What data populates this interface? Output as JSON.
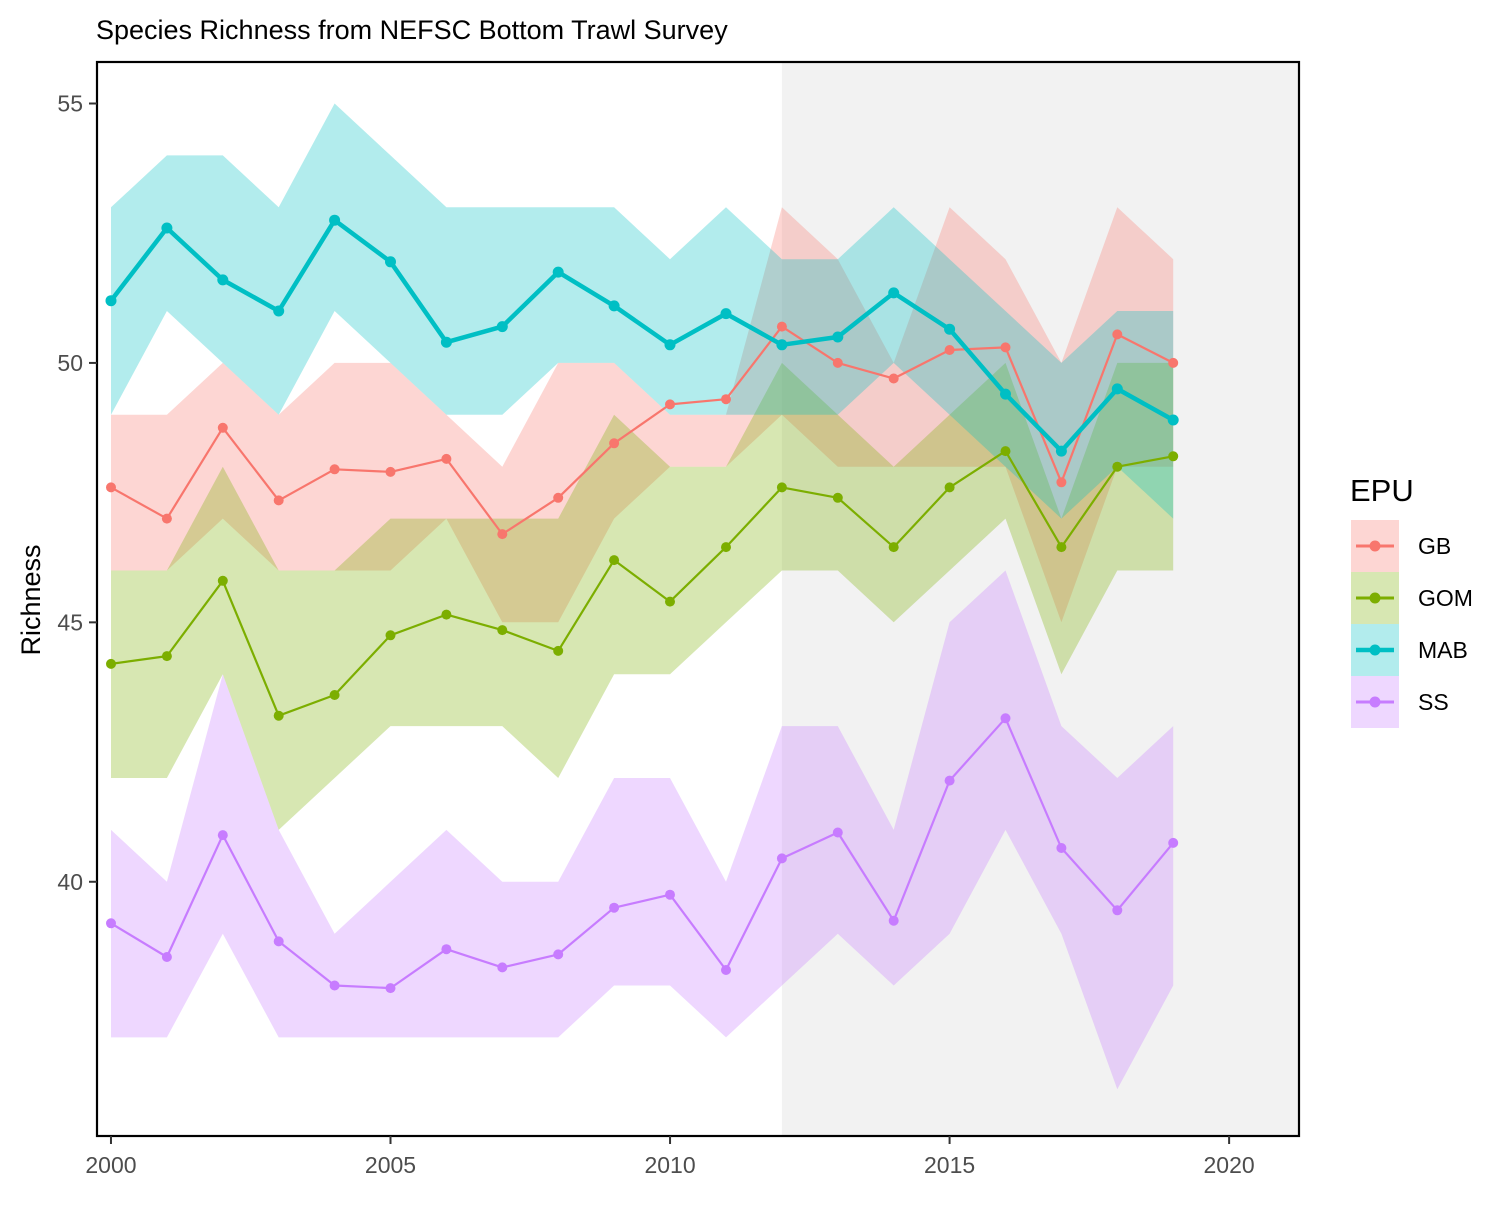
{
  "chart_data": {
    "type": "line",
    "title": "Species Richness from NEFSC Bottom Trawl Survey",
    "xlabel": "",
    "ylabel": "Richness",
    "xlim": [
      1999.75,
      2021.25
    ],
    "ylim": [
      35.1,
      55.8
    ],
    "x_ticks": [
      2000,
      2005,
      2010,
      2015,
      2020
    ],
    "y_ticks": [
      40,
      45,
      50,
      55
    ],
    "grid": false,
    "legend": {
      "title": "EPU",
      "position": "right"
    },
    "highlight_region": {
      "x_start": 2012,
      "x_end": 2021.25,
      "color": "#F2F2F2"
    },
    "x": [
      2000,
      2001,
      2002,
      2003,
      2004,
      2005,
      2006,
      2007,
      2008,
      2009,
      2010,
      2011,
      2012,
      2013,
      2014,
      2015,
      2016,
      2017,
      2018,
      2019
    ],
    "series": [
      {
        "name": "GB",
        "color": "#F8766D",
        "emphasis": false,
        "values": [
          47.6,
          47.0,
          48.75,
          47.35,
          47.95,
          47.9,
          48.15,
          46.7,
          47.4,
          48.45,
          49.2,
          49.3,
          50.7,
          50.0,
          49.7,
          50.25,
          50.3,
          47.7,
          50.55,
          50.0
        ],
        "upper": [
          49.0,
          49.0,
          50.0,
          49.0,
          50.0,
          50.0,
          49.0,
          48.0,
          50.0,
          50.0,
          49.0,
          49.0,
          53.0,
          52.0,
          50.0,
          53.0,
          52.0,
          50.0,
          53.0,
          52.0
        ],
        "lower": [
          46.0,
          46.0,
          47.0,
          46.0,
          46.0,
          46.0,
          47.0,
          45.0,
          45.0,
          47.0,
          48.0,
          48.0,
          49.0,
          48.0,
          48.0,
          48.0,
          48.0,
          45.0,
          48.0,
          48.0
        ]
      },
      {
        "name": "GOM",
        "color": "#7CAE00",
        "emphasis": false,
        "values": [
          44.2,
          44.35,
          45.8,
          43.2,
          43.6,
          44.75,
          45.15,
          44.85,
          44.45,
          46.2,
          45.4,
          46.45,
          47.6,
          47.4,
          46.45,
          47.6,
          48.3,
          46.45,
          48.0,
          48.2
        ],
        "upper": [
          46.0,
          46.0,
          48.0,
          46.0,
          46.0,
          47.0,
          47.0,
          47.0,
          47.0,
          49.0,
          48.0,
          48.0,
          50.0,
          49.0,
          48.0,
          49.0,
          50.0,
          47.0,
          50.0,
          50.0
        ],
        "lower": [
          42.0,
          42.0,
          44.0,
          41.0,
          42.0,
          43.0,
          43.0,
          43.0,
          42.0,
          44.0,
          44.0,
          45.0,
          46.0,
          46.0,
          45.0,
          46.0,
          47.0,
          44.0,
          46.0,
          46.0
        ]
      },
      {
        "name": "MAB",
        "color": "#00BFC4",
        "emphasis": true,
        "values": [
          51.2,
          52.6,
          51.6,
          51.0,
          52.75,
          51.95,
          50.4,
          50.7,
          51.75,
          51.1,
          50.35,
          50.95,
          50.35,
          50.5,
          51.35,
          50.65,
          49.4,
          48.3,
          49.5,
          48.9
        ],
        "upper": [
          53.0,
          54.0,
          54.0,
          53.0,
          55.0,
          54.0,
          53.0,
          53.0,
          53.0,
          53.0,
          52.0,
          53.0,
          52.0,
          52.0,
          53.0,
          52.0,
          51.0,
          50.0,
          51.0,
          51.0
        ],
        "lower": [
          49.0,
          51.0,
          50.0,
          49.0,
          51.0,
          50.0,
          49.0,
          49.0,
          50.0,
          50.0,
          49.0,
          49.0,
          49.0,
          49.0,
          50.0,
          49.0,
          48.0,
          47.0,
          48.0,
          47.0
        ]
      },
      {
        "name": "SS",
        "color": "#C77CFF",
        "emphasis": false,
        "values": [
          39.2,
          38.55,
          40.9,
          38.85,
          38.0,
          37.95,
          38.7,
          38.35,
          38.6,
          39.5,
          39.75,
          38.3,
          40.45,
          40.95,
          39.25,
          41.95,
          43.15,
          40.65,
          39.45,
          40.75
        ],
        "upper": [
          41.0,
          40.0,
          44.0,
          41.0,
          39.0,
          40.0,
          41.0,
          40.0,
          40.0,
          42.0,
          42.0,
          40.0,
          43.0,
          43.0,
          41.0,
          45.0,
          46.0,
          43.0,
          42.0,
          43.0
        ],
        "lower": [
          37.0,
          37.0,
          39.0,
          37.0,
          37.0,
          37.0,
          37.0,
          37.0,
          37.0,
          38.0,
          38.0,
          37.0,
          38.0,
          39.0,
          38.0,
          39.0,
          41.0,
          39.0,
          36.0,
          38.0
        ]
      }
    ]
  }
}
